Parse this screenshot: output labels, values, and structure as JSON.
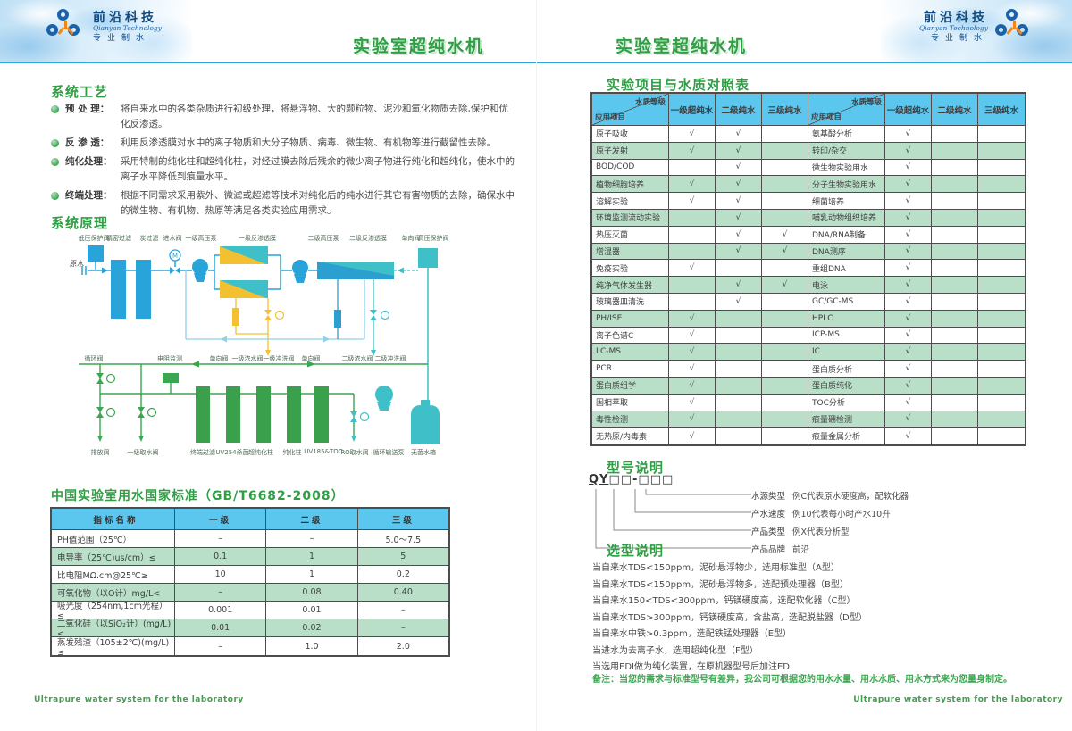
{
  "brand": {
    "name_cn": "前沿科技",
    "name_en": "Qianyan Technology",
    "tagline": "专业制水"
  },
  "header": {
    "title": "实验室超纯水机"
  },
  "footer": {
    "text": "Ultrapure water system for the laboratory"
  },
  "left_page": {
    "process": {
      "title": "系统工艺",
      "items": [
        {
          "term": "预 处 理",
          "desc": "将自来水中的各类杂质进行初级处理，将悬浮物、大的颗粒物、泥沙和氧化物质去除,保护和优化反渗透。"
        },
        {
          "term": "反 渗 透",
          "desc": "利用反渗透膜对水中的离子物质和大分子物质、病毒、微生物、有机物等进行截留性去除。"
        },
        {
          "term": "纯化处理",
          "desc": "采用特制的纯化柱和超纯化柱，对经过膜去除后残余的微少离子物进行纯化和超纯化，使水中的离子水平降低到痕量水平。"
        },
        {
          "term": "终端处理",
          "desc": "根据不同需求采用紫外、微滤或超滤等技术对纯化后的纯水进行其它有害物质的去除，确保水中的微生物、有机物、热原等满足各类实验应用需求。"
        }
      ]
    },
    "principle": {
      "title": "系统原理",
      "source_label": "原水",
      "top_labels": [
        "低压保护阀",
        "精密过滤",
        "炭过滤",
        "进水阀",
        "一级高压泵",
        "一级反渗透膜",
        "二级高压泵",
        "二级反渗透膜",
        "单向阀",
        "高压保护阀"
      ],
      "mid_labels": [
        "循环阀",
        "电阻监测",
        "单向阀",
        "一级浓水阀",
        "一级冲洗阀",
        "单向阀",
        "二级浓水阀",
        "二级冲洗阀"
      ],
      "bottom_labels": [
        "排放阀",
        "一级取水阀",
        "终端过滤",
        "UV254杀菌",
        "超纯化柱",
        "纯化柱",
        "UV185&TOC",
        "RO取水阀",
        "循环输送泵",
        "无菌水箱"
      ]
    },
    "standard_table": {
      "title": "中国实验室用水国家标准（GB/T6682-2008）",
      "headers": [
        "指标名称",
        "一级",
        "二级",
        "三级"
      ],
      "rows": [
        [
          "PH值范围（25℃）",
          "–",
          "–",
          "5.0～7.5"
        ],
        [
          "电导率（25℃)us/cm）≤",
          "0.1",
          "1",
          "5"
        ],
        [
          "比电阻MΩ.cm@25℃≥",
          "10",
          "1",
          "0.2"
        ],
        [
          "可氧化物（以O计）mg/L<",
          "–",
          "0.08",
          "0.40"
        ],
        [
          "吸光度（254nm,1cm光程）≤",
          "0.001",
          "0.01",
          "–"
        ],
        [
          "二氧化硅（以SiO₂计）(mg/L) <",
          "0.01",
          "0.02",
          "–"
        ],
        [
          "蒸发残渣（105±2℃)(mg/L) ≤",
          "–",
          "1.0",
          "2.0"
        ]
      ]
    }
  },
  "right_page": {
    "compare_table": {
      "title": "实验项目与水质对照表",
      "corner": {
        "top": "水质等级",
        "bottom": "应用项目"
      },
      "grade_cols": [
        "一级超纯水",
        "二级纯水",
        "三级纯水"
      ],
      "check": "√",
      "rows": [
        {
          "l": "原子吸收",
          "lc": [
            1,
            1,
            0
          ],
          "r": "氨基酸分析",
          "rc": [
            1,
            0,
            0
          ]
        },
        {
          "l": "原子发射",
          "lc": [
            1,
            1,
            0
          ],
          "r": "转印/杂交",
          "rc": [
            1,
            0,
            0
          ]
        },
        {
          "l": "BOD/COD",
          "lc": [
            0,
            1,
            0
          ],
          "r": "微生物实验用水",
          "rc": [
            1,
            0,
            0
          ]
        },
        {
          "l": "植物细胞培养",
          "lc": [
            1,
            1,
            0
          ],
          "r": "分子生物实验用水",
          "rc": [
            1,
            0,
            0
          ]
        },
        {
          "l": "溶解实验",
          "lc": [
            1,
            1,
            0
          ],
          "r": "细菌培养",
          "rc": [
            1,
            0,
            0
          ]
        },
        {
          "l": "环境监测流动实验",
          "lc": [
            0,
            1,
            0
          ],
          "r": "哺乳动物组织培养",
          "rc": [
            1,
            0,
            0
          ]
        },
        {
          "l": "热压灭菌",
          "lc": [
            0,
            1,
            1
          ],
          "r": "DNA/RNA制备",
          "rc": [
            1,
            0,
            0
          ]
        },
        {
          "l": "增湿器",
          "lc": [
            0,
            1,
            1
          ],
          "r": "DNA测序",
          "rc": [
            1,
            0,
            0
          ]
        },
        {
          "l": "免疫实验",
          "lc": [
            1,
            0,
            0
          ],
          "r": "重组DNA",
          "rc": [
            1,
            0,
            0
          ]
        },
        {
          "l": "纯净气体发生器",
          "lc": [
            0,
            1,
            1
          ],
          "r": "电泳",
          "rc": [
            1,
            0,
            0
          ]
        },
        {
          "l": "玻璃器皿清洗",
          "lc": [
            0,
            1,
            0
          ],
          "r": "GC/GC-MS",
          "rc": [
            1,
            0,
            0
          ]
        },
        {
          "l": "PH/ISE",
          "lc": [
            1,
            0,
            0
          ],
          "r": "HPLC",
          "rc": [
            1,
            0,
            0
          ]
        },
        {
          "l": "离子色谱C",
          "lc": [
            1,
            0,
            0
          ],
          "r": "ICP-MS",
          "rc": [
            1,
            0,
            0
          ]
        },
        {
          "l": "LC-MS",
          "lc": [
            1,
            0,
            0
          ],
          "r": "IC",
          "rc": [
            1,
            0,
            0
          ]
        },
        {
          "l": "PCR",
          "lc": [
            1,
            0,
            0
          ],
          "r": "蛋白质分析",
          "rc": [
            1,
            0,
            0
          ]
        },
        {
          "l": "蛋白质组学",
          "lc": [
            1,
            0,
            0
          ],
          "r": "蛋白质纯化",
          "rc": [
            1,
            0,
            0
          ]
        },
        {
          "l": "固相萃取",
          "lc": [
            1,
            0,
            0
          ],
          "r": "TOC分析",
          "rc": [
            1,
            0,
            0
          ]
        },
        {
          "l": "毒性检测",
          "lc": [
            1,
            0,
            0
          ],
          "r": "痕量硼检测",
          "rc": [
            1,
            0,
            0
          ]
        },
        {
          "l": "无热原/内毒素",
          "lc": [
            1,
            0,
            0
          ],
          "r": "痕量金属分析",
          "rc": [
            1,
            0,
            0
          ]
        }
      ]
    },
    "model": {
      "title": "型号说明",
      "prefix": "QY",
      "boxes": "□□-□□□",
      "items": [
        {
          "label": "水源类型",
          "desc": "例C代表原水硬度高，配软化器"
        },
        {
          "label": "产水速度",
          "desc": "例10代表每小时产水10升"
        },
        {
          "label": "产品类型",
          "desc": "例X代表分析型"
        },
        {
          "label": "产品品牌",
          "desc": "前沿"
        }
      ]
    },
    "selection": {
      "title": "选型说明",
      "lines": [
        "当自来水TDS<150ppm，泥砂悬浮物少，选用标准型（A型）",
        "当自来水TDS<150ppm，泥砂悬浮物多，选配预处理器（B型）",
        "当自来水150<TDS<300ppm，钙镁硬度高，选配软化器（C型）",
        "当自来水TDS>300ppm，钙镁硬度高，含盐高，选配脱盐器（D型）",
        "当自来水中铁>0.3ppm，选配铁锰处理器（E型）",
        "当进水为去离子水，选用超纯化型（F型）",
        "当选用EDI做为纯化装置，在原机器型号后加注EDI"
      ],
      "note": "备注：当您的需求与标准型号有差异，我公司可根据您的用水水量、用水水质、用水方式来为您量身制定。"
    }
  }
}
